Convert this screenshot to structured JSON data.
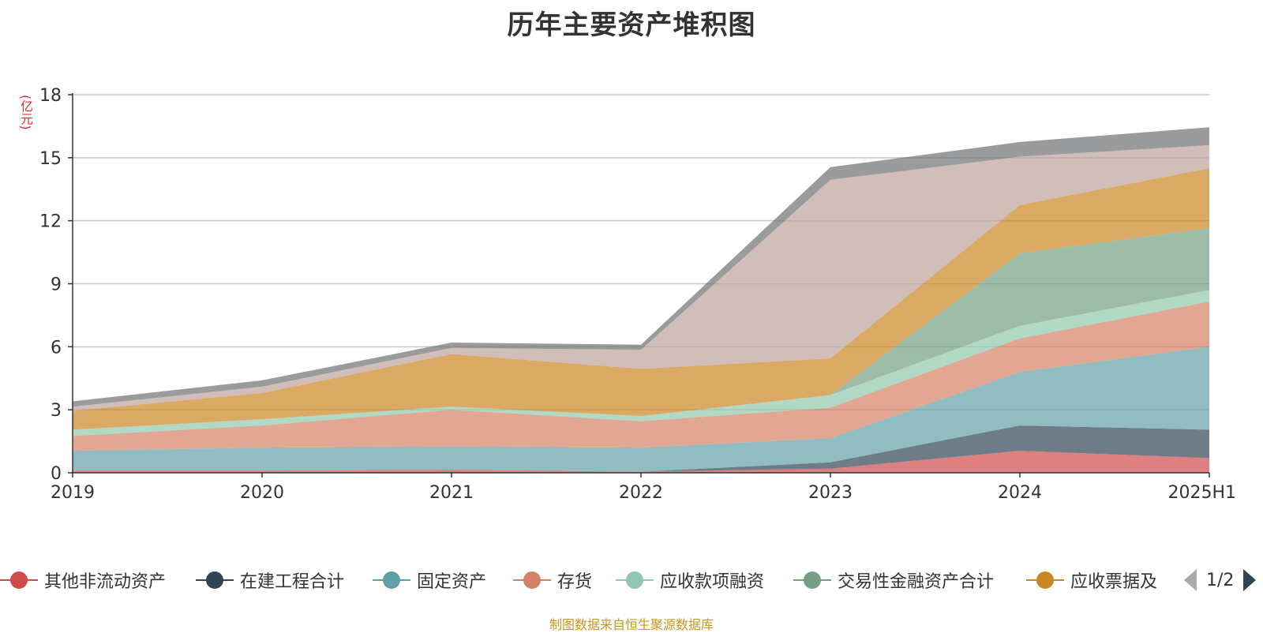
{
  "chart_data": {
    "type": "area",
    "title": "历年主要资产堆积图",
    "unit_label": "(亿元)",
    "categories": [
      "2019",
      "2020",
      "2021",
      "2022",
      "2023",
      "2024",
      "2025H1"
    ],
    "ylim": [
      0,
      18
    ],
    "yticks": [
      "0",
      "3",
      "6",
      "9",
      "12",
      "15",
      "18"
    ],
    "grid": true,
    "legend_position": "bottom",
    "series": [
      {
        "name": "其他非流动资产",
        "color": "#d14a4a",
        "values": [
          0.1,
          0.1,
          0.15,
          0.05,
          0.2,
          1.05,
          0.7
        ]
      },
      {
        "name": "在建工程合计",
        "color": "#2f4554",
        "values": [
          0,
          0,
          0,
          0,
          0.3,
          1.2,
          1.35
        ]
      },
      {
        "name": "固定资产",
        "color": "#61a0a8",
        "values": [
          0.95,
          1.1,
          1.1,
          1.15,
          1.15,
          2.55,
          3.95
        ]
      },
      {
        "name": "存货",
        "color": "#d48265",
        "values": [
          0.7,
          1.05,
          1.75,
          1.25,
          1.45,
          1.6,
          2.15
        ]
      },
      {
        "name": "应收款项融资",
        "color": "#91c7ae",
        "values": [
          0.3,
          0.3,
          0.15,
          0.25,
          0.6,
          0.6,
          0.55
        ]
      },
      {
        "name": "交易性金融资产合计",
        "color": "#749f83",
        "values": [
          0,
          0,
          0,
          0,
          0,
          3.45,
          2.95
        ]
      },
      {
        "name": "应收票据及",
        "color": "#ca8622",
        "values": [
          0.9,
          1.25,
          2.5,
          2.25,
          1.75,
          2.3,
          2.85
        ]
      },
      {
        "name": "",
        "color": "#bda29a",
        "values": [
          0.2,
          0.3,
          0.3,
          0.9,
          8.5,
          2.3,
          1.1
        ]
      },
      {
        "name": "",
        "color": "#6e7074",
        "values": [
          0.25,
          0.3,
          0.25,
          0.25,
          0.6,
          0.7,
          0.85
        ]
      }
    ]
  },
  "legend": {
    "page": "1/2"
  },
  "source": "制图数据来自恒生聚源数据库"
}
